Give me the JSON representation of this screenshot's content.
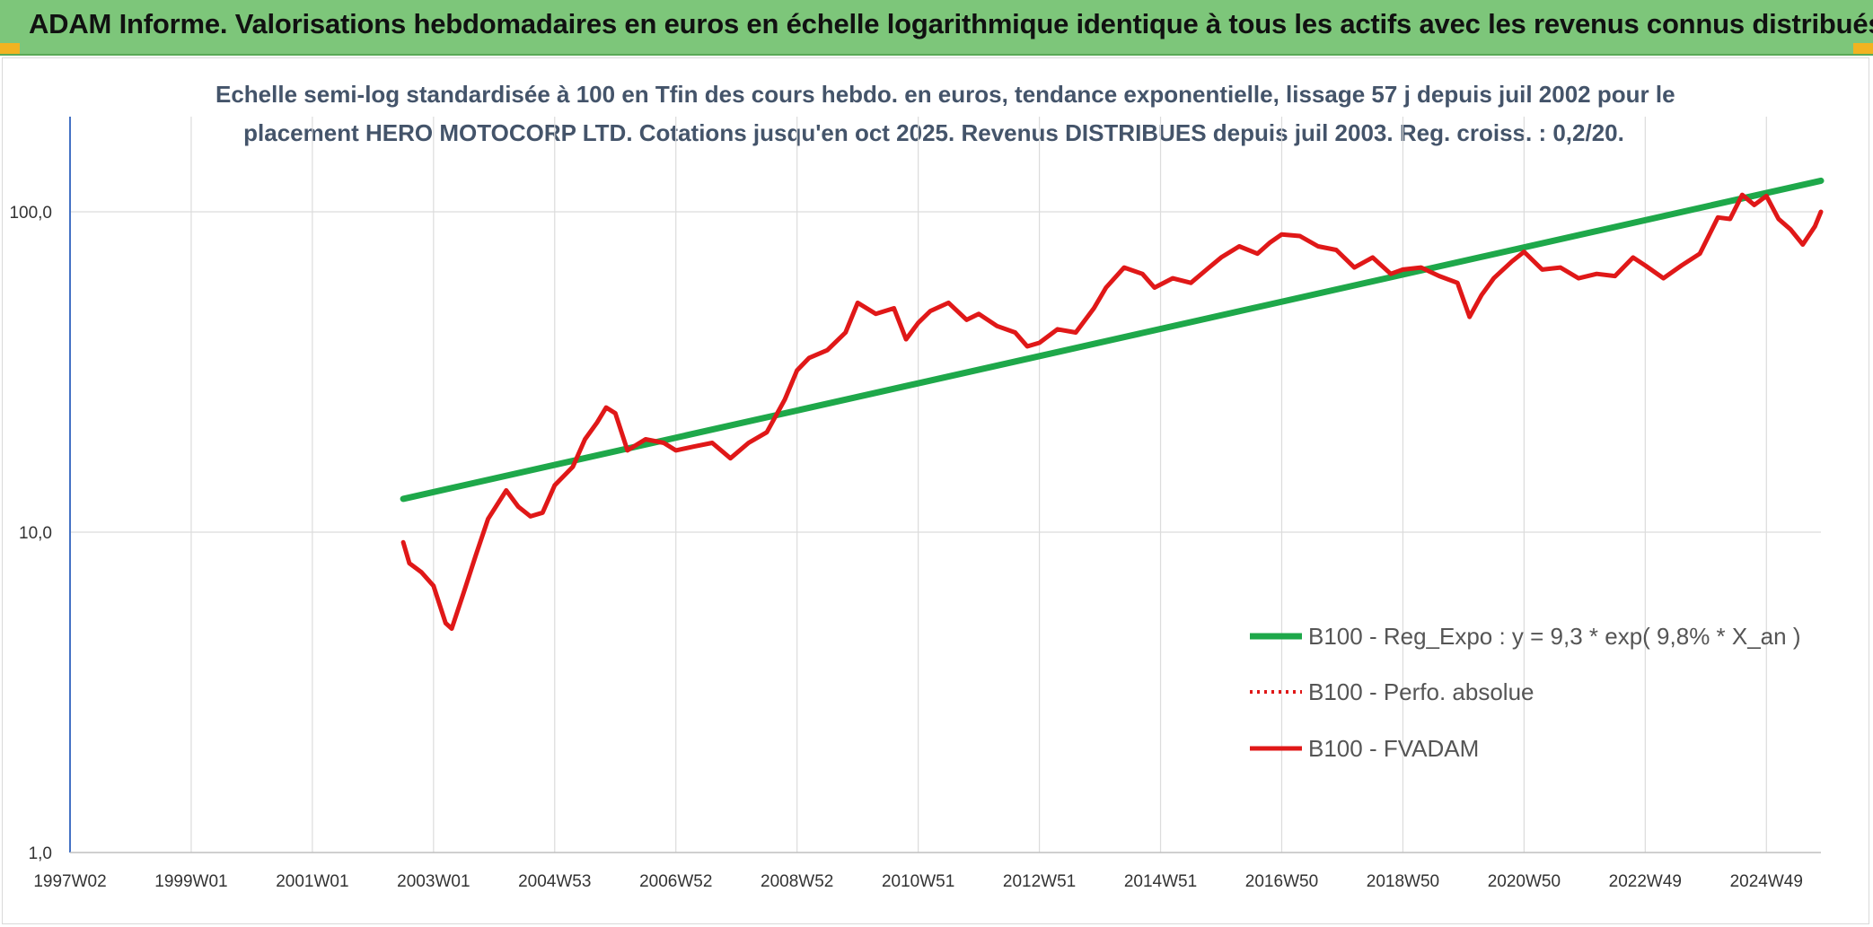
{
  "header": {
    "title": "ADAM Informe. Valorisations hebdomadaires en euros en échelle logarithmique identique à tous les actifs avec les revenus connus distribués"
  },
  "chart_data": {
    "type": "line",
    "title_line1": "Echelle semi-log standardisée à 100 en Tfin des cours hebdo. en euros, tendance exponentielle, lissage 57 j depuis juil 2002 pour le",
    "title_line2": "placement HERO MOTOCORP LTD. Cotations jusqu'en oct 2025. Revenus DISTRIBUES depuis juil 2003. Reg. croiss. : 0,2/20.",
    "y_scale": "log",
    "ylim": [
      1,
      200
    ],
    "xlim": [
      1997.0,
      2025.9
    ],
    "grid": true,
    "legend_position": "bottom-right",
    "y_ticks": [
      {
        "value": 1,
        "label": "1,0"
      },
      {
        "value": 10,
        "label": "10,0"
      },
      {
        "value": 100,
        "label": "100,0"
      }
    ],
    "x_ticks": [
      {
        "value": 1997.0,
        "label": "1997W02"
      },
      {
        "value": 1999.0,
        "label": "1999W01"
      },
      {
        "value": 2001.0,
        "label": "2001W01"
      },
      {
        "value": 2003.0,
        "label": "2003W01"
      },
      {
        "value": 2005.0,
        "label": "2004W53"
      },
      {
        "value": 2007.0,
        "label": "2006W52"
      },
      {
        "value": 2009.0,
        "label": "2008W52"
      },
      {
        "value": 2011.0,
        "label": "2010W51"
      },
      {
        "value": 2013.0,
        "label": "2012W51"
      },
      {
        "value": 2015.0,
        "label": "2014W51"
      },
      {
        "value": 2017.0,
        "label": "2016W50"
      },
      {
        "value": 2019.0,
        "label": "2018W50"
      },
      {
        "value": 2021.0,
        "label": "2020W50"
      },
      {
        "value": 2023.0,
        "label": "2022W49"
      },
      {
        "value": 2025.0,
        "label": "2024W49"
      }
    ],
    "series": [
      {
        "name": "B100 - Reg_Expo : y = 9,3 * exp( 9,8% *  X_an )",
        "color": "#1ea84a",
        "style": "solid",
        "x": [
          2002.5,
          2025.9
        ],
        "y": [
          12.7,
          125
        ]
      },
      {
        "name": "B100 - Perfo. absolue",
        "color": "#e01818",
        "style": "dotted",
        "x": [],
        "y": []
      },
      {
        "name": "B100 - FVADAM",
        "color": "#e01818",
        "style": "solid",
        "x": [
          2002.5,
          2002.6,
          2002.8,
          2003.0,
          2003.2,
          2003.3,
          2003.5,
          2003.7,
          2003.9,
          2004.2,
          2004.4,
          2004.6,
          2004.8,
          2005.0,
          2005.3,
          2005.5,
          2005.7,
          2005.85,
          2006.0,
          2006.2,
          2006.5,
          2006.8,
          2007.0,
          2007.3,
          2007.6,
          2007.9,
          2008.2,
          2008.5,
          2008.8,
          2009.0,
          2009.2,
          2009.5,
          2009.8,
          2010.0,
          2010.3,
          2010.6,
          2010.8,
          2011.0,
          2011.2,
          2011.5,
          2011.8,
          2012.0,
          2012.3,
          2012.6,
          2012.8,
          2013.0,
          2013.3,
          2013.6,
          2013.9,
          2014.1,
          2014.4,
          2014.7,
          2014.9,
          2015.2,
          2015.5,
          2015.8,
          2016.0,
          2016.3,
          2016.6,
          2016.8,
          2017.0,
          2017.3,
          2017.6,
          2017.9,
          2018.2,
          2018.5,
          2018.8,
          2019.0,
          2019.3,
          2019.6,
          2019.9,
          2020.1,
          2020.3,
          2020.5,
          2020.8,
          2021.0,
          2021.3,
          2021.6,
          2021.9,
          2022.2,
          2022.5,
          2022.8,
          2023.0,
          2023.3,
          2023.6,
          2023.9,
          2024.2,
          2024.4,
          2024.6,
          2024.8,
          2025.0,
          2025.2,
          2025.4,
          2025.6,
          2025.8,
          2025.9
        ],
        "y": [
          9.3,
          8.0,
          7.5,
          6.8,
          5.2,
          5.0,
          6.5,
          8.5,
          11.0,
          13.5,
          12.0,
          11.2,
          11.5,
          14.0,
          16.0,
          19.5,
          22.0,
          24.5,
          23.5,
          18.0,
          19.5,
          19.0,
          18.0,
          18.5,
          19.0,
          17.0,
          19.0,
          20.5,
          26.0,
          32.0,
          35.0,
          37.0,
          42.0,
          52.0,
          48.0,
          50.0,
          40.0,
          45.0,
          49.0,
          52.0,
          46.0,
          48.0,
          44.0,
          42.0,
          38.0,
          39.0,
          43.0,
          42.0,
          50.0,
          58.0,
          67.0,
          64.0,
          58.0,
          62.0,
          60.0,
          67.0,
          72.0,
          78.0,
          74.0,
          80.0,
          85.0,
          84.0,
          78.0,
          76.0,
          67.0,
          72.0,
          64.0,
          66.0,
          67.0,
          63.0,
          60.0,
          47.0,
          55.0,
          62.0,
          70.0,
          75.0,
          66.0,
          67.0,
          62.0,
          64.0,
          63.0,
          72.0,
          68.0,
          62.0,
          68.0,
          74.0,
          96.0,
          95.0,
          113.0,
          105.0,
          112.0,
          95.0,
          88.0,
          79.0,
          90.0,
          100.0
        ]
      }
    ]
  }
}
